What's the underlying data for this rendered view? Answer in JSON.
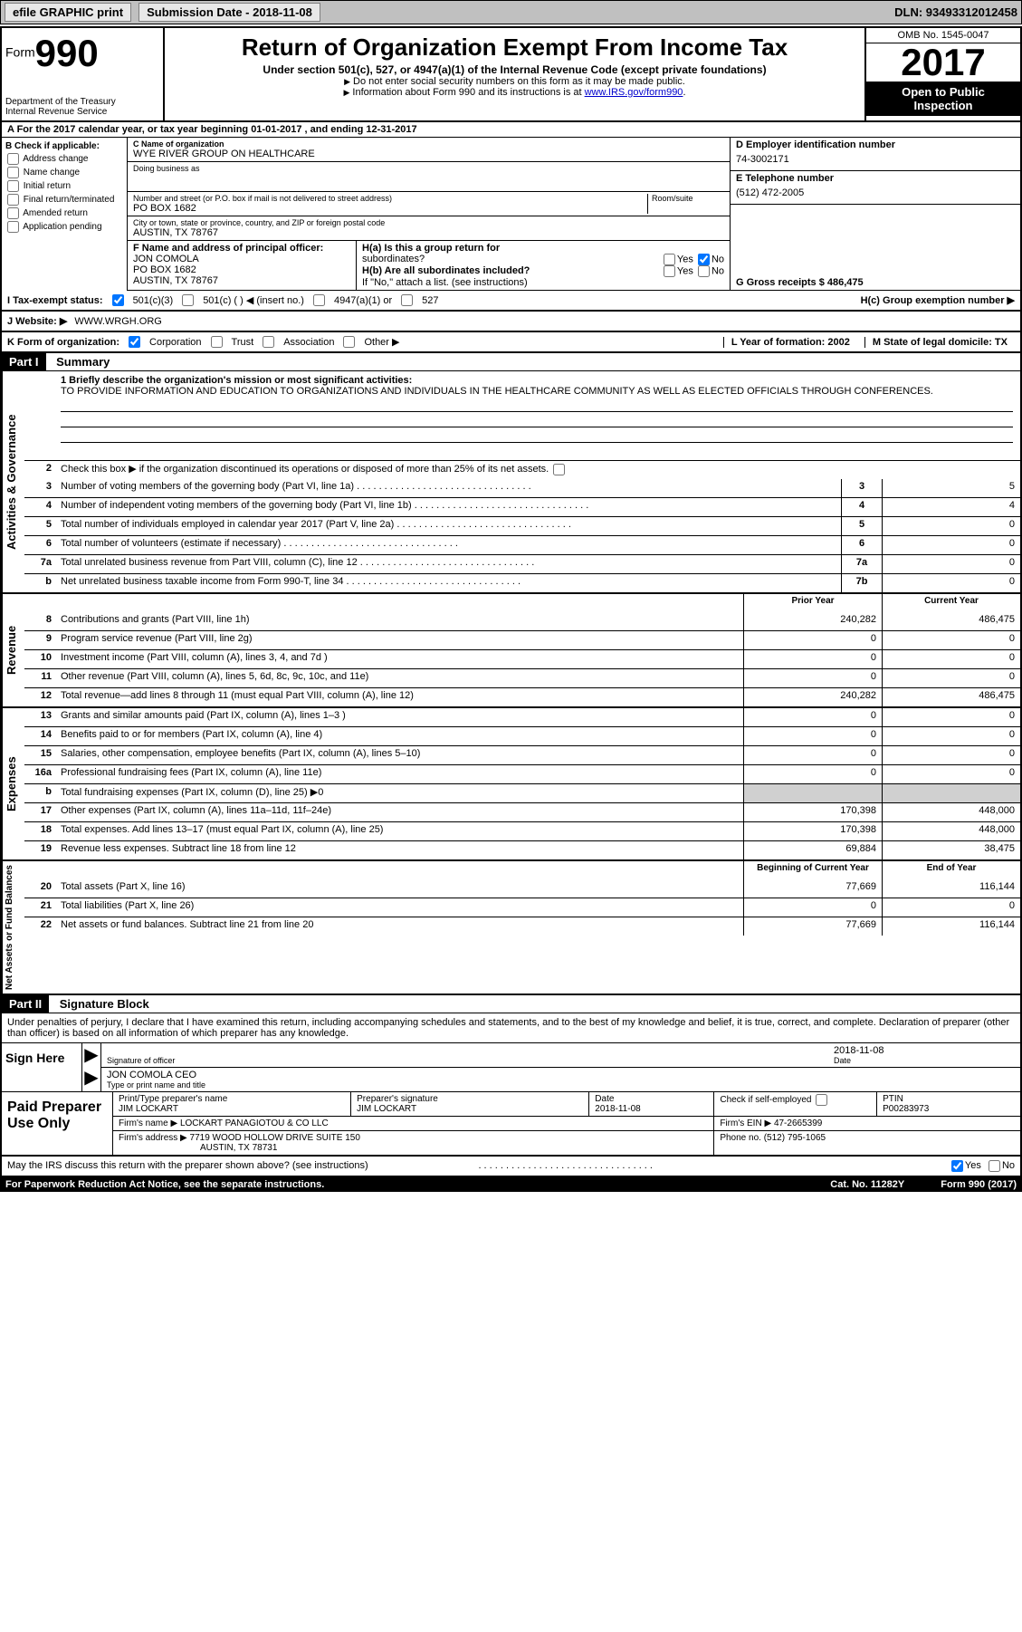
{
  "top_bar": {
    "efile_label": "efile GRAPHIC print",
    "submission_label": "Submission Date - 2018-11-08",
    "dln": "DLN: 93493312012458"
  },
  "header": {
    "form_word": "Form",
    "form_num": "990",
    "dept": "Department of the Treasury",
    "irs": "Internal Revenue Service",
    "title": "Return of Organization Exempt From Income Tax",
    "subtitle": "Under section 501(c), 527, or 4947(a)(1) of the Internal Revenue Code (except private foundations)",
    "note1": "Do not enter social security numbers on this form as it may be made public.",
    "note2_pre": "Information about Form 990 and its instructions is at ",
    "note2_link": "www.IRS.gov/form990",
    "omb": "OMB No. 1545-0047",
    "year": "2017",
    "open1": "Open to Public",
    "open2": "Inspection"
  },
  "row_a": "A  For the 2017 calendar year, or tax year beginning 01-01-2017   , and ending 12-31-2017",
  "section_b": {
    "b_label": "B Check if applicable:",
    "checks": [
      "Address change",
      "Name change",
      "Initial return",
      "Final return/terminated",
      "Amended return",
      "Application pending"
    ],
    "c_label": "C Name of organization",
    "org_name": "WYE RIVER GROUP ON HEALTHCARE",
    "dba_label": "Doing business as",
    "addr_label": "Number and street (or P.O. box if mail is not delivered to street address)",
    "room_label": "Room/suite",
    "addr": "PO BOX 1682",
    "city_label": "City or town, state or province, country, and ZIP or foreign postal code",
    "city": "AUSTIN, TX  78767",
    "f_label": "F Name and address of principal officer:",
    "officer_name": "JON COMOLA",
    "officer_addr1": "PO BOX 1682",
    "officer_addr2": "AUSTIN, TX  78767",
    "d_label": "D Employer identification number",
    "ein": "74-3002171",
    "e_label": "E Telephone number",
    "phone": "(512) 472-2005",
    "g_label": "G Gross receipts $ 486,475",
    "ha_label": "H(a)  Is this a group return for",
    "ha_sub": "subordinates?",
    "hb_label": "H(b)  Are all subordinates included?",
    "hb_note": "If \"No,\" attach a list. (see instructions)",
    "hc_label": "H(c)  Group exemption number ▶",
    "yes": "Yes",
    "no": "No"
  },
  "status": {
    "i_label": "I  Tax-exempt status:",
    "opt1": "501(c)(3)",
    "opt2": "501(c) (  ) ◀ (insert no.)",
    "opt3": "4947(a)(1) or",
    "opt4": "527"
  },
  "website": {
    "j_label": "J  Website: ▶",
    "url": "WWW.WRGH.ORG"
  },
  "korg": {
    "k_label": "K Form of organization:",
    "opts": [
      "Corporation",
      "Trust",
      "Association",
      "Other ▶"
    ],
    "l_label": "L Year of formation: 2002",
    "m_label": "M State of legal domicile: TX"
  },
  "part1": {
    "header": "Part I",
    "title": "Summary",
    "vert_gov": "Activities & Governance",
    "vert_rev": "Revenue",
    "vert_exp": "Expenses",
    "vert_net": "Net Assets or Fund Balances",
    "line1_label": "1 Briefly describe the organization's mission or most significant activities:",
    "mission": "TO PROVIDE INFORMATION AND EDUCATION TO ORGANIZATIONS AND INDIVIDUALS IN THE HEALTHCARE COMMUNITY AS WELL AS ELECTED OFFICIALS THROUGH CONFERENCES.",
    "line2": "Check this box ▶       if the organization discontinued its operations or disposed of more than 25% of its net assets.",
    "lines_gov": [
      {
        "n": "3",
        "t": "Number of voting members of the governing body (Part VI, line 1a)",
        "b": "3",
        "v": "5"
      },
      {
        "n": "4",
        "t": "Number of independent voting members of the governing body (Part VI, line 1b)",
        "b": "4",
        "v": "4"
      },
      {
        "n": "5",
        "t": "Total number of individuals employed in calendar year 2017 (Part V, line 2a)",
        "b": "5",
        "v": "0"
      },
      {
        "n": "6",
        "t": "Total number of volunteers (estimate if necessary)",
        "b": "6",
        "v": "0"
      },
      {
        "n": "7a",
        "t": "Total unrelated business revenue from Part VIII, column (C), line 12",
        "b": "7a",
        "v": "0"
      },
      {
        "n": "b",
        "t": "Net unrelated business taxable income from Form 990-T, line 34",
        "b": "7b",
        "v": "0"
      }
    ],
    "col_prior": "Prior Year",
    "col_current": "Current Year",
    "lines_rev": [
      {
        "n": "8",
        "t": "Contributions and grants (Part VIII, line 1h)",
        "p": "240,282",
        "c": "486,475"
      },
      {
        "n": "9",
        "t": "Program service revenue (Part VIII, line 2g)",
        "p": "0",
        "c": "0"
      },
      {
        "n": "10",
        "t": "Investment income (Part VIII, column (A), lines 3, 4, and 7d )",
        "p": "0",
        "c": "0"
      },
      {
        "n": "11",
        "t": "Other revenue (Part VIII, column (A), lines 5, 6d, 8c, 9c, 10c, and 11e)",
        "p": "0",
        "c": "0"
      },
      {
        "n": "12",
        "t": "Total revenue—add lines 8 through 11 (must equal Part VIII, column (A), line 12)",
        "p": "240,282",
        "c": "486,475"
      }
    ],
    "lines_exp": [
      {
        "n": "13",
        "t": "Grants and similar amounts paid (Part IX, column (A), lines 1–3 )",
        "p": "0",
        "c": "0"
      },
      {
        "n": "14",
        "t": "Benefits paid to or for members (Part IX, column (A), line 4)",
        "p": "0",
        "c": "0"
      },
      {
        "n": "15",
        "t": "Salaries, other compensation, employee benefits (Part IX, column (A), lines 5–10)",
        "p": "0",
        "c": "0"
      },
      {
        "n": "16a",
        "t": "Professional fundraising fees (Part IX, column (A), line 11e)",
        "p": "0",
        "c": "0"
      },
      {
        "n": "b",
        "t": "Total fundraising expenses (Part IX, column (D), line 25) ▶0",
        "p": "",
        "c": "",
        "shade": true
      },
      {
        "n": "17",
        "t": "Other expenses (Part IX, column (A), lines 11a–11d, 11f–24e)",
        "p": "170,398",
        "c": "448,000"
      },
      {
        "n": "18",
        "t": "Total expenses. Add lines 13–17 (must equal Part IX, column (A), line 25)",
        "p": "170,398",
        "c": "448,000"
      },
      {
        "n": "19",
        "t": "Revenue less expenses. Subtract line 18 from line 12",
        "p": "69,884",
        "c": "38,475"
      }
    ],
    "col_begin": "Beginning of Current Year",
    "col_end": "End of Year",
    "lines_net": [
      {
        "n": "20",
        "t": "Total assets (Part X, line 16)",
        "p": "77,669",
        "c": "116,144"
      },
      {
        "n": "21",
        "t": "Total liabilities (Part X, line 26)",
        "p": "0",
        "c": "0"
      },
      {
        "n": "22",
        "t": "Net assets or fund balances. Subtract line 21 from line 20",
        "p": "77,669",
        "c": "116,144"
      }
    ]
  },
  "part2": {
    "header": "Part II",
    "title": "Signature Block",
    "intro": "Under penalties of perjury, I declare that I have examined this return, including accompanying schedules and statements, and to the best of my knowledge and belief, it is true, correct, and complete. Declaration of preparer (other than officer) is based on all information of which preparer has any knowledge.",
    "sign_here": "Sign Here",
    "sig_officer_label": "Signature of officer",
    "sig_date_label": "Date",
    "sig_date": "2018-11-08",
    "sig_name": "JON COMOLA  CEO",
    "sig_name_label": "Type or print name and title",
    "paid_label": "Paid Preparer Use Only",
    "prep_name_label": "Print/Type preparer's name",
    "prep_name": "JIM LOCKART",
    "prep_sig_label": "Preparer's signature",
    "prep_sig": "JIM LOCKART",
    "prep_date_label": "Date",
    "prep_date": "2018-11-08",
    "check_self": "Check        if self-employed",
    "ptin_label": "PTIN",
    "ptin": "P00283973",
    "firm_name_label": "Firm's name      ▶",
    "firm_name": "LOCKART PANAGIOTOU & CO LLC",
    "firm_ein_label": "Firm's EIN ▶",
    "firm_ein": "47-2665399",
    "firm_addr_label": "Firm's address ▶",
    "firm_addr": "7719 WOOD HOLLOW DRIVE SUITE 150",
    "firm_city": "AUSTIN, TX  78731",
    "firm_phone_label": "Phone no.",
    "firm_phone": "(512) 795-1065",
    "discuss": "May the IRS discuss this return with the preparer shown above? (see instructions)",
    "yes": "Yes",
    "no": "No"
  },
  "footer": {
    "paperwork": "For Paperwork Reduction Act Notice, see the separate instructions.",
    "cat": "Cat. No. 11282Y",
    "form": "Form 990 (2017)"
  }
}
